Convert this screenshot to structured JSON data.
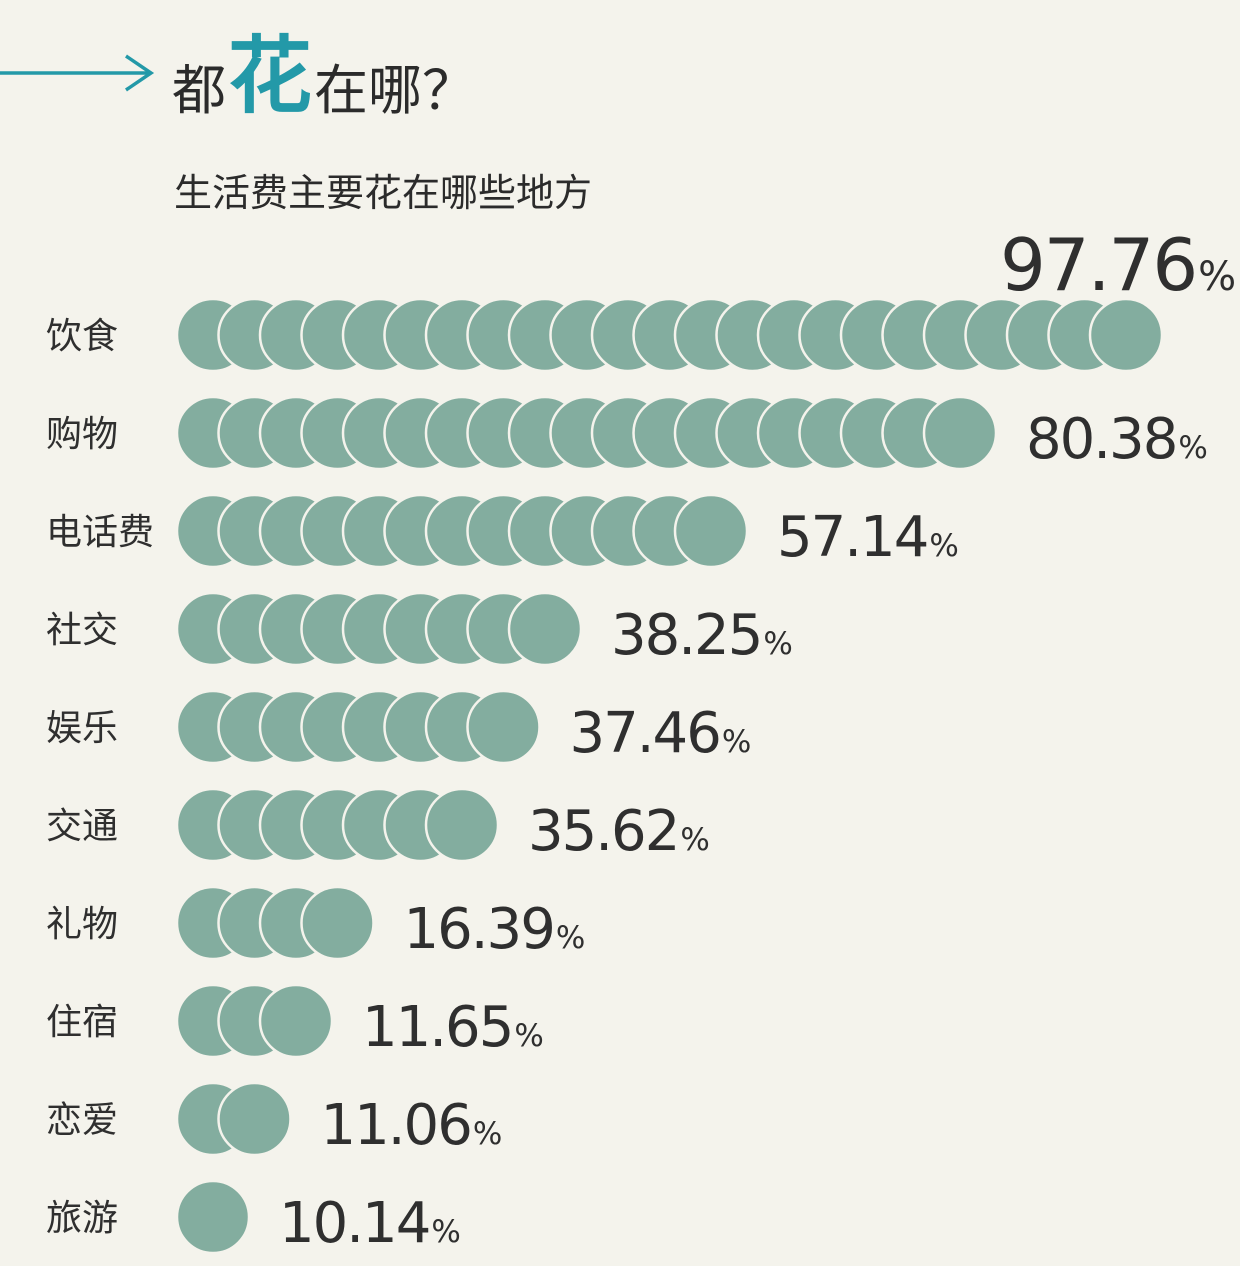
{
  "header": {
    "title_before": "都",
    "title_accent": "花",
    "title_after": "在哪？",
    "subtitle": "生活费主要花在哪些地方"
  },
  "colors": {
    "background": "#f4f3ec",
    "dot_fill": "#83ad9f",
    "dot_stroke": "#f4f3ec",
    "accent": "#2399a8",
    "text": "#2f2f2f"
  },
  "chart_data": {
    "type": "bar",
    "style": "pictogram-dots",
    "categories": [
      "饮食",
      "购物",
      "电话费",
      "社交",
      "娱乐",
      "交通",
      "礼物",
      "住宿",
      "恋爱",
      "旅游"
    ],
    "values": [
      97.76,
      80.38,
      57.14,
      38.25,
      37.46,
      35.62,
      16.39,
      11.65,
      11.06,
      10.14
    ],
    "value_labels": [
      "97.76",
      "80.38",
      "57.14",
      "38.25",
      "37.46",
      "35.62",
      "16.39",
      "11.65",
      "11.06",
      "10.14"
    ],
    "dot_counts": [
      23,
      19,
      13,
      9,
      8,
      7,
      4,
      3,
      2,
      1
    ],
    "unit": "%",
    "xlabel": "",
    "ylabel": "",
    "grid": false,
    "legend": "none"
  }
}
